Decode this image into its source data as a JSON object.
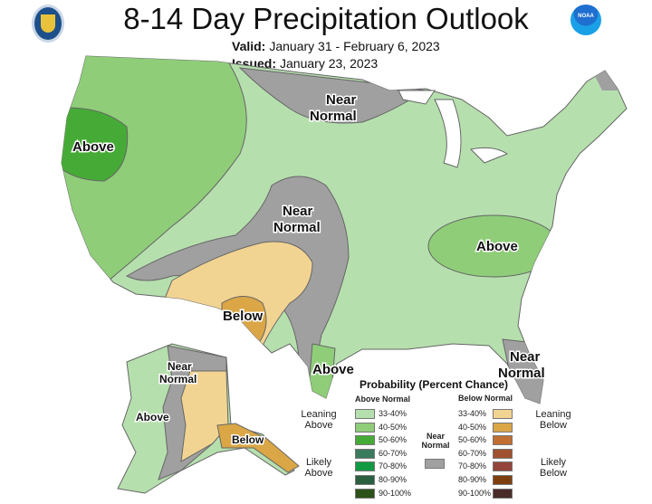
{
  "title": "8-14 Day Precipitation Outlook",
  "valid_label": "Valid:",
  "valid_value": "January 31 - February 6, 2023",
  "issued_label": "Issued:",
  "issued_value": "January 23, 2023",
  "logos": {
    "left": "department-of-commerce-seal",
    "right": "NOAA"
  },
  "map_labels": {
    "above_nw": "Above",
    "near_normal_north": [
      "Near",
      "Normal"
    ],
    "near_normal_central": [
      "Near",
      "Normal"
    ],
    "below_sw": "Below",
    "above_se": "Above",
    "above_tx": "Above",
    "near_normal_fl": [
      "Near",
      "Normal"
    ],
    "ak_near_normal": [
      "Near",
      "Normal"
    ],
    "ak_above": "Above",
    "ak_below": "Below"
  },
  "colors": {
    "lean_above": "#b6dfae",
    "above_40": "#8fcd79",
    "above_50": "#46ab36",
    "gray": "#a0a0a0",
    "lean_below": "#f2d492",
    "below_40": "#daa646"
  },
  "legend": {
    "title": "Probability (Percent Chance)",
    "above_header": "Above Normal",
    "below_header": "Below Normal",
    "near_normal": "Near Normal",
    "leaning_above": "Leaning Above",
    "likely_above": "Likely Above",
    "leaning_below": "Leaning Below",
    "likely_below": "Likely Below",
    "above": [
      {
        "label": "33-40%",
        "color": "#b6dfae"
      },
      {
        "label": "40-50%",
        "color": "#8fcd79"
      },
      {
        "label": "50-60%",
        "color": "#46ab36"
      },
      {
        "label": "60-70%",
        "color": "#3a7b5e"
      },
      {
        "label": "70-80%",
        "color": "#119a43"
      },
      {
        "label": "80-90%",
        "color": "#2c5e40"
      },
      {
        "label": "90-100%",
        "color": "#2b5219"
      }
    ],
    "below": [
      {
        "label": "33-40%",
        "color": "#f2d492"
      },
      {
        "label": "40-50%",
        "color": "#daa646"
      },
      {
        "label": "50-60%",
        "color": "#c06e32"
      },
      {
        "label": "60-70%",
        "color": "#a0512f"
      },
      {
        "label": "70-80%",
        "color": "#94443a"
      },
      {
        "label": "80-90%",
        "color": "#7e3f0f"
      },
      {
        "label": "90-100%",
        "color": "#4a2b28"
      }
    ],
    "near_color": "#a0a0a0"
  }
}
